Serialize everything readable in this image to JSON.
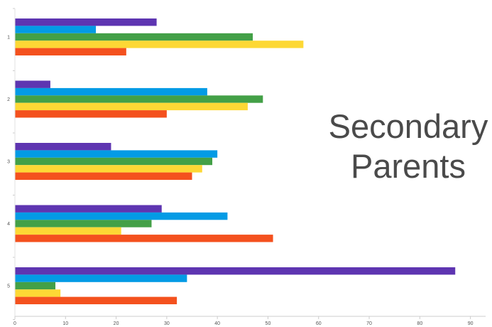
{
  "chart_data": {
    "type": "bar",
    "orientation": "horizontal",
    "categories": [
      "1",
      "2",
      "3",
      "4",
      "5"
    ],
    "series": [
      {
        "color": "#5e35b1",
        "values": [
          28,
          7,
          19,
          29,
          87
        ]
      },
      {
        "color": "#039be5",
        "values": [
          16,
          38,
          40,
          42,
          34
        ]
      },
      {
        "color": "#43a047",
        "values": [
          47,
          49,
          39,
          27,
          8
        ]
      },
      {
        "color": "#fdd835",
        "values": [
          57,
          46,
          37,
          21,
          9
        ]
      },
      {
        "color": "#f4511e",
        "values": [
          22,
          30,
          35,
          51,
          32
        ]
      }
    ],
    "x_ticks": [
      0,
      10,
      20,
      30,
      40,
      50,
      60,
      70,
      80,
      90
    ],
    "xlim": [
      0,
      93
    ],
    "grid": false,
    "legend": "none",
    "title": "",
    "xlabel": "",
    "ylabel": ""
  },
  "overlay": {
    "line1": "Secondary",
    "line2": "Parents"
  }
}
